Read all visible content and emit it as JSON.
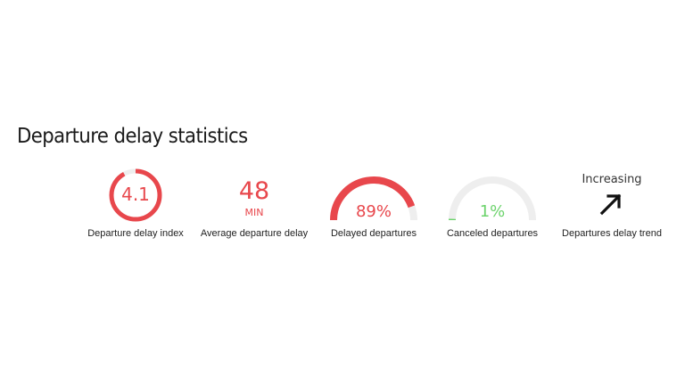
{
  "section": {
    "title": "Departure delay statistics"
  },
  "colors": {
    "accent_red": "#e8474c",
    "accent_green": "#6cd36c",
    "track_gray": "#eeeeee",
    "arrow_black": "#111111"
  },
  "stats": {
    "delay_index": {
      "value": "4.1",
      "label": "Departure delay index",
      "ring_fraction": 0.92
    },
    "average_delay": {
      "value": "48",
      "unit": "MIN",
      "label": "Average departure delay"
    },
    "delayed": {
      "value": "89%",
      "label": "Delayed departures",
      "fraction": 0.89
    },
    "canceled": {
      "value": "1%",
      "label": "Canceled departures",
      "fraction": 0.01
    },
    "trend": {
      "value": "Increasing",
      "label": "Departures delay trend",
      "icon": "arrow-up-right-icon"
    }
  }
}
